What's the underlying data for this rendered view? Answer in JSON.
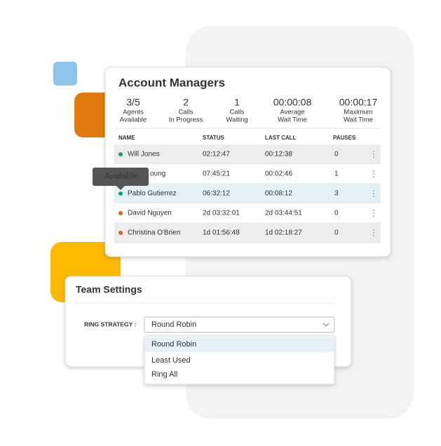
{
  "account_managers": {
    "title": "Account Managers",
    "stats": [
      {
        "value": "3/5",
        "line1": "Agents",
        "line2": "Available"
      },
      {
        "value": "2",
        "line1": "Calls",
        "line2": "In Progress"
      },
      {
        "value": "1",
        "line1": "Calls",
        "line2": "Waiting"
      },
      {
        "value": "00:00:08",
        "line1": "Average",
        "line2": "Wait Time"
      },
      {
        "value": "00:00:17",
        "line1": "Maximum",
        "line2": "Wait Time"
      }
    ],
    "table": {
      "headers": [
        "NAME",
        "STATUS",
        "LAST CALL",
        "PAUSES"
      ],
      "rows": [
        {
          "name": "Will Jones",
          "status": "02:12:47",
          "last_call": "00:12:38",
          "pauses": "0",
          "dot_color": "#16a06b"
        },
        {
          "name": "oung",
          "status": "07:45:21",
          "last_call": "00:02:46",
          "pauses": "1",
          "dot_color": null
        },
        {
          "name": "Pablo Gutierrez",
          "status": "06:32:12",
          "last_call": "00:08:12",
          "pauses": "3",
          "dot_color": "#16a06b"
        },
        {
          "name": "David Nguyen",
          "status": "2d 03:32:01",
          "last_call": "2d 03:44:51",
          "pauses": "0",
          "dot_color": "#e0601d"
        },
        {
          "name": "Christina O'Brien",
          "status": "1d 01:56:48",
          "last_call": "1d 02:18:27",
          "pauses": "0",
          "dot_color": "#e0601d"
        }
      ]
    },
    "tooltip": "Available"
  },
  "team_settings": {
    "title": "Team Settings",
    "ring_strategy_label": "RING STRATEGY :",
    "selected": "Round Robin",
    "options": [
      "Round Robin",
      "Least Used",
      "Ring All"
    ]
  }
}
